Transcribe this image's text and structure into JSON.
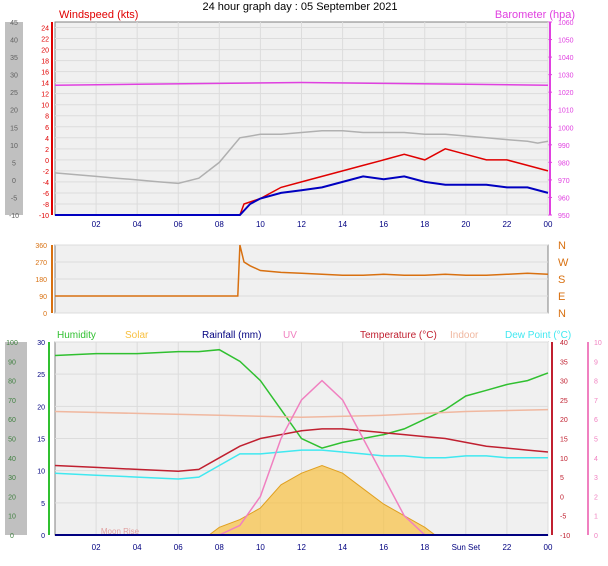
{
  "title": "24 hour graph day : 05 September 2021",
  "colors": {
    "wind": "#e00000",
    "wind_avg": "#0000c0",
    "baro": "#e040e0",
    "gust_trend": "#b0b0b0",
    "winddir": "#d87010",
    "humidity": "#30c030",
    "solar": "#f8c040",
    "rain": "#000080",
    "uv": "#f080c0",
    "temp": "#c02030",
    "indoor": "#f0b8a0",
    "dewpoint": "#40e8f0",
    "frame_left": "#c0c0c0",
    "frame_bg": "#f0f0f0"
  },
  "chart_data": [
    {
      "type": "line",
      "panel": "wind",
      "left_axis_label": "Windspeed (kts)",
      "right_axis_label": "Barometer (hpa)",
      "left_ticks": [
        "24",
        "22",
        "20",
        "18",
        "16",
        "14",
        "12",
        "10",
        "8",
        "6",
        "4",
        "2",
        "0",
        "-2",
        "-4",
        "-6",
        "-8",
        "-10"
      ],
      "right_ticks": [
        "1060",
        "1050",
        "1040",
        "1030",
        "1020",
        "1010",
        "1000",
        "990",
        "980",
        "970",
        "960",
        "950"
      ],
      "outer_left_ticks": [
        "45",
        "40",
        "35",
        "30",
        "25",
        "20",
        "15",
        "10",
        "5",
        "0",
        "-5",
        "-10"
      ],
      "x_ticks": [
        "02",
        "04",
        "06",
        "08",
        "10",
        "12",
        "14",
        "16",
        "18",
        "20",
        "22",
        "00"
      ],
      "ylim": [
        -10,
        25
      ],
      "y2lim": [
        950,
        1060
      ],
      "series": [
        {
          "key": "baro",
          "axis": "right",
          "x": [
            0,
            4,
            8,
            12,
            16,
            20,
            24
          ],
          "y": [
            1024,
            1024.5,
            1025,
            1025.5,
            1025,
            1024.5,
            1024
          ]
        },
        {
          "key": "gust_trend",
          "axis": "outer",
          "x": [
            0,
            1,
            2,
            3,
            4,
            5,
            6,
            7,
            8,
            9,
            10,
            11,
            12,
            13,
            14,
            15,
            16,
            17,
            18,
            19,
            20,
            21,
            22,
            23,
            23.5,
            24
          ],
          "y": [
            2,
            1.5,
            1,
            0.5,
            0,
            -0.5,
            -1,
            0.5,
            5,
            12,
            13,
            13,
            13.5,
            14,
            14,
            13.5,
            13.5,
            13.5,
            13,
            13,
            12.5,
            12,
            11.5,
            11,
            10.5,
            11
          ]
        },
        {
          "key": "wind",
          "axis": "left",
          "x": [
            0,
            9,
            9.2,
            10,
            11,
            12,
            13,
            14,
            15,
            16,
            17,
            18,
            19,
            20,
            21,
            22,
            23,
            24
          ],
          "y": [
            -10,
            -10,
            -8,
            -7,
            -5,
            -4,
            -3,
            -2,
            -1,
            0,
            1,
            0,
            2,
            1,
            0,
            0,
            -1,
            -2
          ]
        },
        {
          "key": "wind_avg",
          "axis": "left",
          "x": [
            0,
            9,
            9.5,
            10,
            11,
            12,
            13,
            14,
            15,
            16,
            17,
            18,
            19,
            20,
            21,
            22,
            23,
            24
          ],
          "y": [
            -10,
            -10,
            -8,
            -7,
            -6,
            -5.5,
            -5,
            -4,
            -3,
            -3.5,
            -3,
            -4,
            -4.5,
            -4.5,
            -4.5,
            -5,
            -5,
            -6
          ]
        }
      ]
    },
    {
      "type": "line",
      "panel": "winddir",
      "left_ticks": [
        "360",
        "270",
        "180",
        "90",
        "0"
      ],
      "right_ticks": [
        "N",
        "W",
        "S",
        "E",
        "N"
      ],
      "ylim": [
        0,
        360
      ],
      "series": [
        {
          "key": "winddir",
          "x": [
            0,
            8.9,
            9,
            9.2,
            9.5,
            10,
            11,
            12,
            13,
            14,
            15,
            16,
            17,
            18,
            19,
            20,
            21,
            22,
            23,
            24
          ],
          "y": [
            90,
            90,
            360,
            270,
            250,
            225,
            215,
            210,
            205,
            200,
            200,
            205,
            200,
            200,
            205,
            200,
            200,
            205,
            210,
            205
          ]
        }
      ]
    },
    {
      "type": "line",
      "panel": "temperature",
      "legend": [
        "Humidity",
        "Solar",
        "Rainfall (mm)",
        "UV",
        "Temperature (°C)",
        "Indoor",
        "Dew Point (°C)"
      ],
      "left_ticks": [
        "30",
        "25",
        "20",
        "15",
        "10",
        "5",
        "0"
      ],
      "right_ticks": [
        "40",
        "35",
        "30",
        "25",
        "20",
        "15",
        "10",
        "5",
        "0",
        "-5",
        "-10"
      ],
      "outer_left_ticks": [
        "100",
        "90",
        "80",
        "70",
        "60",
        "50",
        "40",
        "30",
        "20",
        "10",
        "0"
      ],
      "outer_right_ticks": [
        "10",
        "9",
        "8",
        "7",
        "6",
        "5",
        "4",
        "3",
        "2",
        "1",
        "0"
      ],
      "x_ticks": [
        "02",
        "04",
        "06",
        "08",
        "10",
        "12",
        "14",
        "16",
        "18",
        "Sun Set",
        "22",
        "00"
      ],
      "annotations": [
        "Moon Rise",
        "Sun Set"
      ],
      "ylim": [
        -10,
        40
      ],
      "series": [
        {
          "key": "humidity",
          "axis": "outer",
          "x": [
            0,
            2,
            4,
            6,
            7,
            8,
            9,
            10,
            11,
            12,
            13,
            14,
            15,
            16,
            17,
            18,
            19,
            20,
            21,
            22,
            23,
            24
          ],
          "y": [
            93,
            94,
            94,
            95,
            95,
            96,
            90,
            80,
            65,
            50,
            45,
            48,
            50,
            52,
            55,
            60,
            65,
            72,
            75,
            78,
            80,
            84
          ]
        },
        {
          "key": "indoor",
          "axis": "right",
          "x": [
            0,
            4,
            8,
            12,
            16,
            20,
            24
          ],
          "y": [
            22,
            21.5,
            21,
            20.5,
            21,
            22,
            22.5
          ]
        },
        {
          "key": "temp",
          "axis": "right",
          "x": [
            0,
            2,
            4,
            6,
            7,
            8,
            9,
            10,
            11,
            12,
            13,
            14,
            15,
            16,
            17,
            18,
            19,
            20,
            21,
            22,
            23,
            24
          ],
          "y": [
            8,
            7.5,
            7,
            6.5,
            7,
            10,
            13,
            15,
            16,
            17,
            17.5,
            17.5,
            17,
            16.5,
            16,
            15.5,
            15,
            14,
            13,
            12.5,
            12,
            11.5
          ]
        },
        {
          "key": "dewpoint",
          "axis": "right",
          "x": [
            0,
            2,
            4,
            6,
            7,
            8,
            9,
            10,
            11,
            12,
            13,
            14,
            15,
            16,
            17,
            18,
            19,
            20,
            21,
            22,
            23,
            24
          ],
          "y": [
            6,
            5.5,
            5,
            4.5,
            5,
            8,
            11,
            11,
            11.5,
            12,
            12,
            11.5,
            11,
            10.5,
            10.5,
            10,
            10,
            10.5,
            10.5,
            10,
            10,
            10
          ]
        },
        {
          "key": "solar",
          "axis": "right",
          "x": [
            7.5,
            8,
            9,
            10,
            11,
            12,
            13,
            14,
            15,
            16,
            17,
            18,
            18.5
          ],
          "y": [
            -10,
            -8,
            -6,
            -3,
            3,
            6,
            8,
            6,
            2,
            -2,
            -5,
            -8,
            -10
          ]
        },
        {
          "key": "uv",
          "axis": "uvaxis",
          "x": [
            8,
            9,
            10,
            11,
            12,
            13,
            14,
            15,
            16,
            17,
            18
          ],
          "y": [
            0,
            0.5,
            2,
            5,
            7,
            8,
            7,
            5,
            3,
            1,
            0
          ]
        },
        {
          "key": "rain",
          "axis": "right",
          "x": [
            0,
            24
          ],
          "y": [
            -10,
            -10
          ]
        }
      ]
    }
  ]
}
